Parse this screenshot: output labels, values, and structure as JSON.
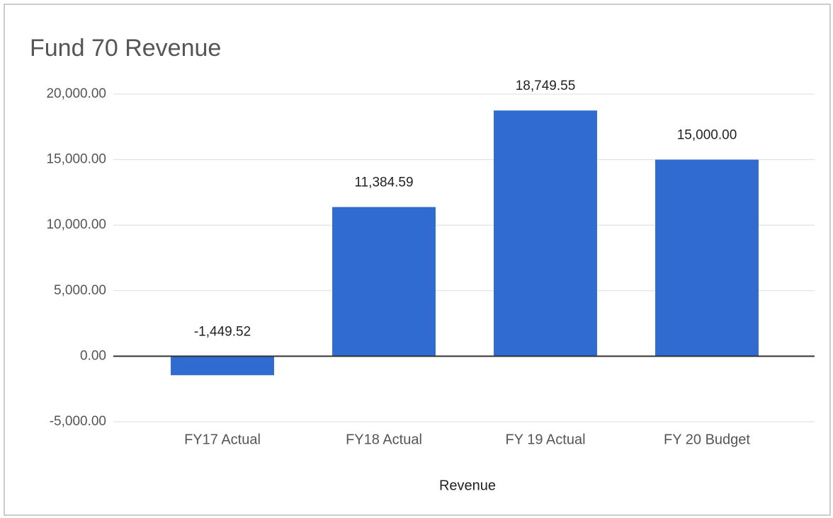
{
  "chart_data": {
    "type": "bar",
    "title": "Fund 70 Revenue",
    "x_label": "Revenue",
    "categories": [
      "FY17 Actual",
      "FY18 Actual",
      "FY 19 Actual",
      "FY 20 Budget"
    ],
    "values": [
      -1449.52,
      11384.59,
      18749.55,
      15000
    ],
    "value_labels": [
      "-1,449.52",
      "11,384.59",
      "18,749.55",
      "15,000.00"
    ],
    "color": "#2f6bd0",
    "ylim": [
      -5000,
      20000
    ],
    "yticks": [
      {
        "value": -5000,
        "label": "-5,000.00"
      },
      {
        "value": 0,
        "label": "0.00"
      },
      {
        "value": 5000,
        "label": "5,000.00"
      },
      {
        "value": 10000,
        "label": "10,000.00"
      },
      {
        "value": 15000,
        "label": "15,000.00"
      },
      {
        "value": 20000,
        "label": "20,000.00"
      }
    ],
    "grid": true
  }
}
